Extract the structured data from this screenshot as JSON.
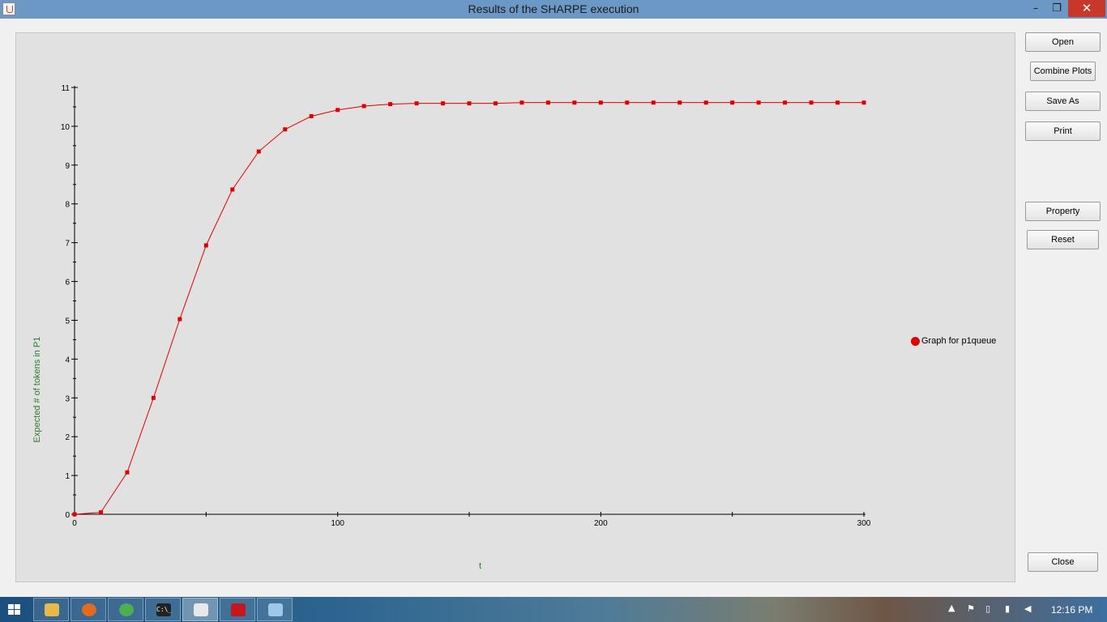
{
  "window": {
    "title": "Results of the SHARPE execution",
    "controls": {
      "minimize": "–",
      "maximize": "❐",
      "close": "✕"
    }
  },
  "buttons": {
    "open": "Open",
    "combine_plots": "Combine Plots",
    "save_as": "Save As",
    "print": "Print",
    "property": "Property",
    "reset": "Reset",
    "close": "Close"
  },
  "chart_data": {
    "type": "line",
    "xlabel": "t",
    "ylabel": "Expected # of tokens in P1",
    "xlim": [
      0,
      300
    ],
    "ylim": [
      0,
      11
    ],
    "x_ticks": [
      0,
      100,
      200,
      300
    ],
    "y_ticks": [
      0,
      1,
      2,
      3,
      4,
      5,
      6,
      7,
      8,
      9,
      10,
      11
    ],
    "legend_position": "right",
    "grid": false,
    "series": [
      {
        "name": "Graph for p1queue",
        "color": "#e00000",
        "marker": "square",
        "x": [
          0,
          10,
          20,
          30,
          40,
          50,
          60,
          70,
          80,
          90,
          100,
          110,
          120,
          130,
          140,
          150,
          160,
          170,
          180,
          190,
          200,
          210,
          220,
          230,
          240,
          250,
          260,
          270,
          280,
          290,
          300
        ],
        "y": [
          0,
          0.05,
          1.08,
          3.0,
          5.03,
          6.93,
          8.37,
          9.35,
          9.92,
          10.26,
          10.42,
          10.52,
          10.57,
          10.59,
          10.59,
          10.59,
          10.59,
          10.61,
          10.61,
          10.61,
          10.61,
          10.61,
          10.61,
          10.61,
          10.61,
          10.61,
          10.61,
          10.61,
          10.61,
          10.61,
          10.61
        ]
      }
    ]
  },
  "taskbar": {
    "apps": [
      {
        "icon": "file-explorer-icon",
        "color": "#e8b84a"
      },
      {
        "icon": "firefox-icon",
        "color": "#e36b1d"
      },
      {
        "icon": "chrome-icon",
        "color": "#4caf50"
      },
      {
        "icon": "command-prompt-icon",
        "color": "#222222",
        "text": "C:\\_"
      },
      {
        "icon": "java-icon",
        "color": "#e8e8e8",
        "active": true
      },
      {
        "icon": "acrobat-icon",
        "color": "#c8161d"
      },
      {
        "icon": "paint-icon",
        "color": "#9fc7e8"
      }
    ],
    "clock": "12:16 PM"
  }
}
